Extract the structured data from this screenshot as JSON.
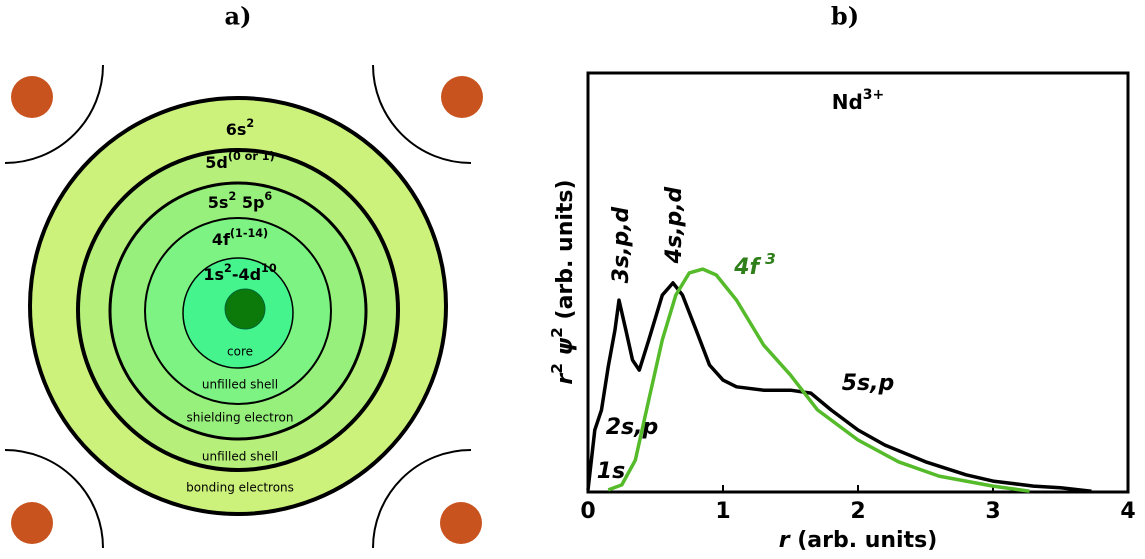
{
  "panel_a": {
    "label": "a)",
    "shell_labels": [
      [
        "6s",
        "2"
      ],
      [
        "5d",
        "(0 or 1)"
      ],
      [
        "5s",
        "2",
        " 5p",
        "6"
      ],
      [
        "4f",
        "(1-14)"
      ],
      [
        "1s",
        "2",
        "-4d",
        "10"
      ]
    ],
    "shell_captions": [
      "core",
      "unfilled shell",
      "shielding electron",
      "unfilled shell",
      "bonding electrons"
    ]
  },
  "chart_data": {
    "type": "line",
    "panel_label": "b)",
    "title": [
      "Nd",
      "3+"
    ],
    "x_label": [
      "r",
      " (arb. units)"
    ],
    "y_label": [
      "r",
      "2",
      " ψ",
      "2",
      " (arb. units)"
    ],
    "xlim": [
      0,
      4
    ],
    "xticks": [
      0,
      1,
      2,
      3,
      4
    ],
    "ylim": [
      0,
      1
    ],
    "series": [
      {
        "color": "#000000",
        "x": [
          0,
          0.05,
          0.1,
          0.15,
          0.2,
          0.23,
          0.28,
          0.33,
          0.38,
          0.45,
          0.55,
          0.63,
          0.7,
          0.8,
          0.9,
          1.0,
          1.1,
          1.3,
          1.5,
          1.65,
          1.8,
          2.0,
          2.2,
          2.5,
          2.8,
          3.0,
          3.3,
          3.5,
          3.73
        ],
        "values": [
          0.005,
          0.148,
          0.196,
          0.3,
          0.387,
          0.458,
          0.387,
          0.315,
          0.291,
          0.363,
          0.47,
          0.499,
          0.47,
          0.387,
          0.303,
          0.267,
          0.251,
          0.243,
          0.243,
          0.236,
          0.196,
          0.148,
          0.112,
          0.072,
          0.041,
          0.026,
          0.014,
          0.01,
          0.002
        ]
      },
      {
        "color": "#55bb2a",
        "x": [
          0.15,
          0.25,
          0.35,
          0.45,
          0.55,
          0.65,
          0.75,
          0.85,
          0.95,
          1.1,
          1.3,
          1.5,
          1.7,
          2.0,
          2.3,
          2.6,
          3.0,
          3.27
        ],
        "values": [
          0.005,
          0.017,
          0.076,
          0.22,
          0.363,
          0.47,
          0.523,
          0.532,
          0.518,
          0.458,
          0.351,
          0.279,
          0.196,
          0.124,
          0.072,
          0.038,
          0.014,
          0.002
        ]
      }
    ],
    "annotations": [
      {
        "text": "1s",
        "color": "#000000"
      },
      {
        "text": "2s,p",
        "color": "#000000"
      },
      {
        "text": "3s,p,d",
        "color": "#000000"
      },
      {
        "text": "4s,p,d",
        "color": "#000000"
      },
      {
        "text": "5s,p",
        "color": "#000000"
      },
      {
        "text": "4f",
        "sup": "3",
        "color": "#2f7f1a"
      }
    ]
  }
}
